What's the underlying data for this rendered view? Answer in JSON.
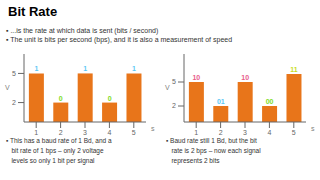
{
  "title": "Bit Rate",
  "annotations": [
    "▪ ...is the rate at which data is sent (bits / second)",
    "▪ The unit is bits per second (bps), and it is also a measurement of speed"
  ],
  "chart_data": [
    {
      "type": "bar",
      "categories": [
        1,
        2,
        3,
        4,
        5
      ],
      "values": [
        5,
        2,
        5,
        2,
        5
      ],
      "color": "#e8751a",
      "xlabel": "s",
      "ylabel": "V",
      "ylim": [
        0,
        7
      ],
      "yticks": [
        2,
        5
      ],
      "annotations": [
        {
          "text": "1",
          "color": "#5bc8f5"
        },
        {
          "text": "0",
          "color": "#7ddc1f"
        },
        {
          "text": "1",
          "color": "#5bc8f5"
        },
        {
          "text": "0",
          "color": "#7ddc1f"
        },
        {
          "text": "1",
          "color": "#5bc8f5"
        }
      ],
      "subtitle": "▪ This has a baud rate of 1 Bd, and a\n   bit rate of 1 bps – only 2 voltage\n   levels so only 1 bit per signal"
    },
    {
      "type": "bar",
      "categories": [
        1,
        2,
        3,
        4,
        5
      ],
      "values": [
        5,
        2,
        5,
        2,
        6
      ],
      "color": "#e8751a",
      "xlabel": "s",
      "ylabel": "V",
      "ylim": [
        0,
        8.5
      ],
      "yticks": [
        2,
        5
      ],
      "annotations": [
        {
          "text": "10",
          "color": "#e85d8a"
        },
        {
          "text": "01",
          "color": "#5bc8f5"
        },
        {
          "text": "10",
          "color": "#e85d8a"
        },
        {
          "text": "00",
          "color": "#7ddc1f"
        },
        {
          "text": "11",
          "color": "#c8dc1f"
        }
      ],
      "subtitle": "▪ Baud rate still 1 Bd, but the bit\n   rate is 2 bps – now each signal\n   represents 2 bits"
    }
  ]
}
